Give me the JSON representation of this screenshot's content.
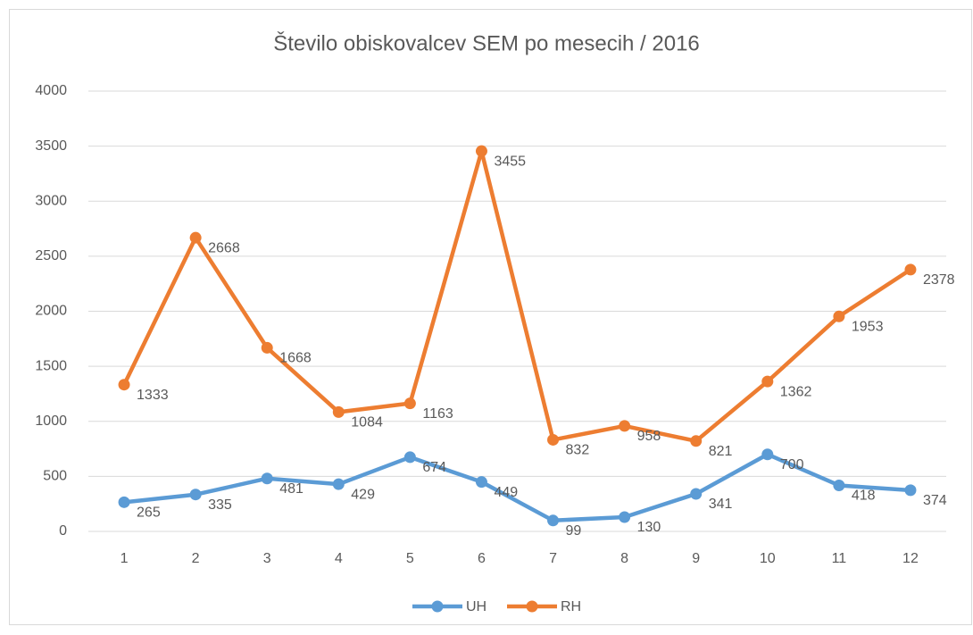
{
  "chart_data": {
    "type": "line",
    "title": "Število obiskovalcev SEM po mesecih / 2016",
    "categories": [
      "1",
      "2",
      "3",
      "4",
      "5",
      "6",
      "7",
      "8",
      "9",
      "10",
      "11",
      "12"
    ],
    "series": [
      {
        "name": "UH",
        "color": "#5b9bd5",
        "values": [
          265,
          335,
          481,
          429,
          674,
          449,
          99,
          130,
          341,
          700,
          418,
          374
        ]
      },
      {
        "name": "RH",
        "color": "#ed7d31",
        "values": [
          1333,
          2668,
          1668,
          1084,
          1163,
          3455,
          832,
          958,
          821,
          1362,
          1953,
          2378
        ]
      }
    ],
    "ylim": [
      0,
      4000
    ],
    "yticks": [
      0,
      500,
      1000,
      1500,
      2000,
      2500,
      3000,
      3500,
      4000
    ],
    "grid": true,
    "legend": "bottom"
  }
}
